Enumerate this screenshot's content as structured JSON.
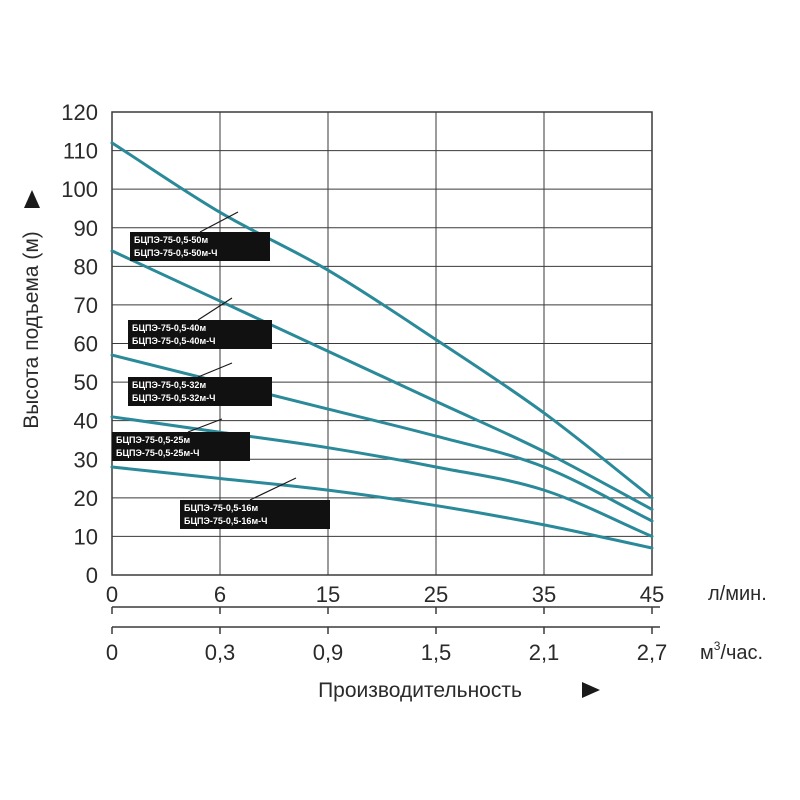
{
  "chart_data": {
    "type": "line",
    "ylabel": "Высота подъема (м)",
    "xlabel": "Производительность",
    "ylim": [
      0,
      120
    ],
    "y_ticks": [
      "0",
      "10",
      "20",
      "30",
      "40",
      "50",
      "60",
      "70",
      "80",
      "90",
      "100",
      "110",
      "120"
    ],
    "x_ticks_lpm": [
      "0",
      "6",
      "15",
      "25",
      "35",
      "45"
    ],
    "x_unit_lpm": "л/мин.",
    "x_ticks_m3h": [
      "0",
      "0,3",
      "0,9",
      "1,5",
      "2,1",
      "2,7"
    ],
    "x_unit_m3h_base": "м",
    "x_unit_m3h_sup": "3",
    "x_unit_m3h_tail": "/час.",
    "grid": true,
    "line_color": "#2a8a99",
    "series": [
      {
        "labels": [
          "БЦПЭ-75-0,5-50м",
          "БЦПЭ-75-0,5-50м-Ч"
        ],
        "x": [
          0,
          6,
          15,
          25,
          35,
          45
        ],
        "y": [
          112,
          94,
          79,
          61,
          42,
          20
        ]
      },
      {
        "labels": [
          "БЦПЭ-75-0,5-40м",
          "БЦПЭ-75-0,5-40м-Ч"
        ],
        "x": [
          0,
          6,
          15,
          25,
          35,
          45
        ],
        "y": [
          84,
          71,
          58,
          45,
          32,
          17
        ]
      },
      {
        "labels": [
          "БЦПЭ-75-0,5-32м",
          "БЦПЭ-75-0,5-32м-Ч"
        ],
        "x": [
          0,
          6,
          15,
          25,
          35,
          45
        ],
        "y": [
          57,
          50,
          43,
          36,
          28,
          14
        ]
      },
      {
        "labels": [
          "БЦПЭ-75-0,5-25м",
          "БЦПЭ-75-0,5-25м-Ч"
        ],
        "x": [
          0,
          6,
          15,
          25,
          35,
          45
        ],
        "y": [
          41,
          37,
          33,
          28,
          22,
          10
        ]
      },
      {
        "labels": [
          "БЦПЭ-75-0,5-16м",
          "БЦПЭ-75-0,5-16м-Ч"
        ],
        "x": [
          0,
          6,
          15,
          25,
          35,
          45
        ],
        "y": [
          28,
          25,
          22,
          18,
          13,
          7
        ]
      }
    ]
  }
}
